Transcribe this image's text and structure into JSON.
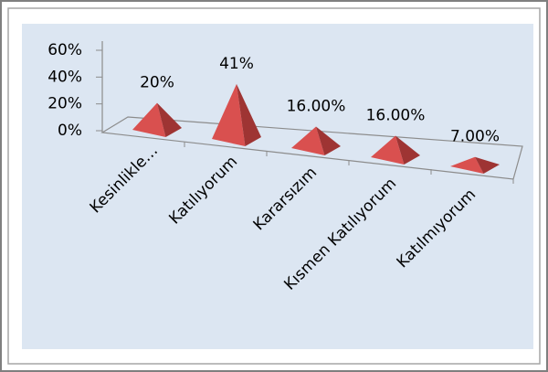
{
  "chart_data": {
    "type": "pyramid3d",
    "categories": [
      "Kesinlikle…",
      "Katılıyorum",
      "Kararsızım",
      "Kısmen Katılıyorum",
      "Katılmıyorum"
    ],
    "values": [
      20,
      41,
      16,
      16,
      7
    ],
    "value_labels": [
      "20%",
      "41%",
      "16.00%",
      "16.00%",
      "7.00%"
    ],
    "color": "#d9504f",
    "ylim": [
      0,
      60
    ],
    "yticks": [
      {
        "value": 0,
        "label": "0%"
      },
      {
        "value": 20,
        "label": "20%"
      },
      {
        "value": 40,
        "label": "40%"
      },
      {
        "value": 60,
        "label": "60%"
      }
    ]
  }
}
